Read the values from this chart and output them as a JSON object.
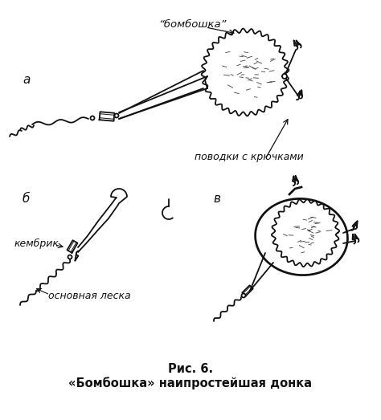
{
  "title_line1": "Рис. 6.",
  "title_line2": "«Бомбошка» наипростейшая донка",
  "label_a": "а",
  "label_b": "б",
  "label_v": "в",
  "label_bomboshka": "“бомбошка”",
  "label_povodki": "поводки с крючками",
  "label_kembrik": "кембрик",
  "label_leska": "основная леска",
  "bg_color": "#ffffff",
  "line_color": "#111111",
  "title_fontsize": 10.5,
  "label_fontsize": 9.5
}
